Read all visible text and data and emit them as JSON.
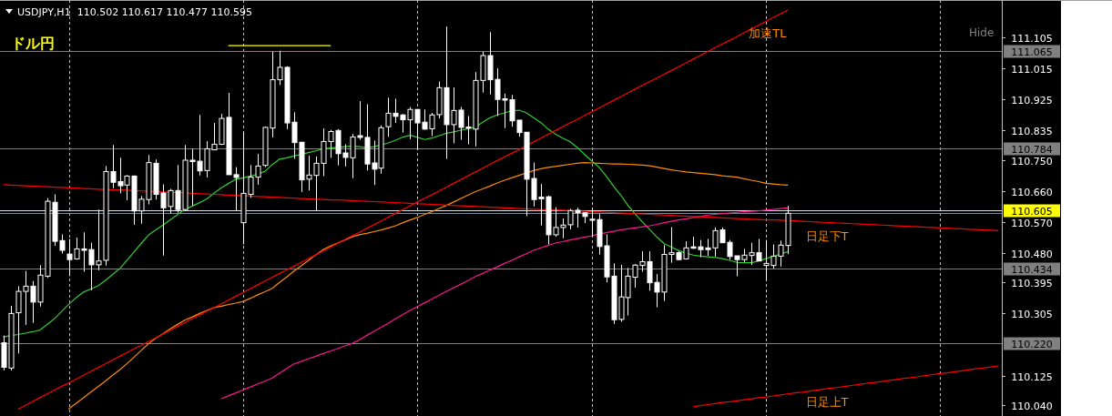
{
  "chart_data": {
    "type": "candlestick",
    "title": "USDJPY,H1",
    "subtitle": "110.502 110.617 110.477 110.595",
    "annotations": [
      "ドル円",
      "Hide"
    ],
    "color": "#ffffff",
    "categories": [
      null,
      null,
      null,
      null,
      null,
      null,
      null,
      null,
      null,
      null,
      null,
      null,
      null,
      null,
      null,
      null,
      null,
      null,
      null,
      null,
      null,
      null,
      null,
      null,
      null,
      null,
      null,
      null,
      null,
      null,
      null,
      null,
      null,
      null,
      null,
      null,
      null,
      null,
      null,
      null,
      null,
      null,
      null,
      null,
      null,
      null,
      null,
      null,
      null,
      null,
      null,
      null,
      null,
      null,
      null,
      null,
      null,
      null,
      null,
      null,
      null,
      null,
      null,
      null,
      null,
      null,
      null,
      null,
      null,
      null,
      null,
      null,
      null,
      null,
      null,
      null,
      null,
      null,
      null,
      null,
      null,
      null,
      null,
      null,
      null,
      null,
      null,
      null,
      null,
      null,
      null,
      null,
      null,
      null,
      null,
      null,
      null,
      null,
      null,
      null,
      null,
      null,
      null,
      null,
      null,
      null,
      null,
      null,
      null,
      null,
      null,
      null,
      null,
      null,
      null,
      null,
      null,
      null,
      null,
      null,
      null,
      null,
      null,
      null,
      null,
      null,
      null,
      null,
      null,
      null,
      null,
      null,
      null,
      null,
      null,
      null,
      null,
      null
    ],
    "ohlc": [
      [
        110.22,
        110.241,
        110.14,
        110.149
      ],
      [
        110.147,
        110.327,
        110.14,
        110.305
      ],
      [
        110.307,
        110.384,
        110.189,
        110.369
      ],
      [
        110.369,
        110.428,
        110.272,
        110.384
      ],
      [
        110.384,
        110.399,
        110.278,
        110.338
      ],
      [
        110.338,
        110.445,
        110.325,
        110.416
      ],
      [
        110.413,
        110.639,
        110.408,
        110.63
      ],
      [
        110.627,
        110.65,
        110.501,
        110.514
      ],
      [
        110.516,
        110.534,
        110.479,
        110.488
      ],
      [
        110.477,
        110.521,
        110.413,
        110.461
      ],
      [
        110.463,
        110.525,
        110.461,
        110.492
      ],
      [
        110.492,
        110.54,
        110.426,
        110.488
      ],
      [
        110.49,
        110.51,
        110.372,
        110.446
      ],
      [
        110.446,
        110.606,
        110.43,
        110.457
      ],
      [
        110.459,
        110.732,
        110.444,
        110.716
      ],
      [
        110.716,
        110.793,
        110.668,
        110.685
      ],
      [
        110.687,
        110.756,
        110.653,
        110.675
      ],
      [
        110.677,
        110.706,
        110.633,
        110.703
      ],
      [
        110.703,
        110.705,
        110.562,
        110.602
      ],
      [
        110.602,
        110.645,
        110.565,
        110.636
      ],
      [
        110.635,
        110.764,
        110.621,
        110.742
      ],
      [
        110.74,
        110.751,
        110.635,
        110.65
      ],
      [
        110.654,
        110.679,
        110.473,
        110.611
      ],
      [
        110.615,
        110.666,
        110.595,
        110.661
      ],
      [
        110.661,
        110.735,
        110.597,
        110.606
      ],
      [
        110.606,
        110.793,
        110.602,
        110.749
      ],
      [
        110.749,
        110.782,
        110.617,
        110.745
      ],
      [
        110.746,
        110.88,
        110.705,
        110.718
      ],
      [
        110.719,
        110.804,
        110.699,
        110.782
      ],
      [
        110.779,
        110.857,
        110.778,
        110.795
      ],
      [
        110.795,
        110.883,
        110.793,
        110.87
      ],
      [
        110.873,
        110.944,
        110.707,
        110.707
      ],
      [
        110.707,
        110.729,
        110.602,
        110.699
      ],
      [
        110.568,
        110.83,
        110.505,
        110.653
      ],
      [
        110.65,
        110.735,
        110.64,
        110.7
      ],
      [
        110.7,
        110.767,
        110.678,
        110.732
      ],
      [
        110.734,
        110.846,
        110.729,
        110.844
      ],
      [
        110.842,
        111.063,
        110.815,
        110.982
      ],
      [
        110.982,
        111.066,
        110.967,
        111.018
      ],
      [
        111.018,
        111.021,
        110.839,
        110.857
      ],
      [
        110.859,
        110.888,
        110.753,
        110.8
      ],
      [
        110.801,
        110.801,
        110.657,
        110.692
      ],
      [
        110.694,
        110.762,
        110.661,
        110.706
      ],
      [
        110.705,
        110.76,
        110.602,
        110.74
      ],
      [
        110.74,
        110.841,
        110.703,
        110.803
      ],
      [
        110.803,
        110.837,
        110.756,
        110.832
      ],
      [
        110.835,
        110.839,
        110.734,
        110.768
      ],
      [
        110.77,
        110.795,
        110.731,
        110.757
      ],
      [
        110.756,
        110.825,
        110.697,
        110.816
      ],
      [
        110.82,
        110.92,
        110.808,
        110.815
      ],
      [
        110.815,
        110.911,
        110.719,
        110.738
      ],
      [
        110.741,
        110.806,
        110.677,
        110.723
      ],
      [
        110.726,
        110.85,
        110.71,
        110.843
      ],
      [
        110.846,
        110.93,
        110.817,
        110.885
      ],
      [
        110.885,
        110.927,
        110.857,
        110.876
      ],
      [
        110.88,
        110.883,
        110.829,
        110.866
      ],
      [
        110.866,
        110.903,
        110.81,
        110.896
      ],
      [
        110.896,
        110.896,
        110.779,
        110.857
      ],
      [
        110.859,
        110.896,
        110.837,
        110.839
      ],
      [
        110.84,
        110.886,
        110.819,
        110.88
      ],
      [
        110.881,
        110.977,
        110.87,
        110.959
      ],
      [
        110.959,
        111.136,
        110.753,
        110.852
      ],
      [
        110.852,
        110.96,
        110.798,
        110.893
      ],
      [
        110.894,
        110.903,
        110.808,
        110.844
      ],
      [
        110.845,
        110.877,
        110.795,
        110.842
      ],
      [
        110.839,
        111.004,
        110.789,
        110.98
      ],
      [
        110.98,
        111.063,
        110.945,
        111.052
      ],
      [
        111.052,
        111.12,
        110.94,
        110.982
      ],
      [
        110.983,
        111.015,
        110.877,
        110.925
      ],
      [
        110.927,
        110.942,
        110.842,
        110.923
      ],
      [
        110.924,
        110.938,
        110.846,
        110.863
      ],
      [
        110.865,
        110.865,
        110.817,
        110.829
      ],
      [
        110.83,
        110.83,
        110.587,
        110.694
      ],
      [
        110.696,
        110.742,
        110.615,
        110.635
      ],
      [
        110.642,
        110.68,
        110.56,
        110.637
      ],
      [
        110.643,
        110.646,
        110.505,
        110.533
      ],
      [
        110.533,
        110.613,
        110.527,
        110.554
      ],
      [
        110.554,
        110.58,
        110.523,
        110.561
      ],
      [
        110.562,
        110.608,
        110.549,
        110.603
      ],
      [
        110.604,
        110.611,
        110.554,
        110.597
      ],
      [
        110.597,
        110.597,
        110.567,
        110.586
      ],
      [
        110.578,
        110.611,
        110.527,
        110.575
      ],
      [
        110.577,
        110.593,
        110.476,
        110.499
      ],
      [
        110.501,
        110.534,
        110.395,
        110.411
      ],
      [
        110.413,
        110.45,
        110.275,
        110.287
      ],
      [
        110.288,
        110.446,
        110.281,
        110.353
      ],
      [
        110.351,
        110.437,
        110.299,
        110.413
      ],
      [
        110.41,
        110.448,
        110.38,
        110.445
      ],
      [
        110.444,
        110.485,
        110.426,
        110.455
      ],
      [
        110.455,
        110.485,
        110.371,
        110.394
      ],
      [
        110.395,
        110.419,
        110.323,
        110.367
      ],
      [
        110.367,
        110.503,
        110.341,
        110.476
      ],
      [
        110.476,
        110.555,
        110.452,
        110.481
      ],
      [
        110.481,
        110.485,
        110.459,
        110.461
      ],
      [
        110.463,
        110.514,
        110.461,
        110.495
      ],
      [
        110.498,
        110.527,
        110.492,
        110.494
      ],
      [
        110.498,
        110.518,
        110.468,
        110.49
      ],
      [
        110.495,
        110.521,
        110.472,
        110.49
      ],
      [
        110.495,
        110.554,
        110.47,
        110.545
      ],
      [
        110.547,
        110.554,
        110.51,
        110.51
      ],
      [
        110.511,
        110.518,
        110.461,
        110.47
      ],
      [
        110.472,
        110.472,
        110.413,
        110.461
      ],
      [
        110.461,
        110.492,
        110.454,
        110.474
      ],
      [
        110.473,
        110.51,
        110.446,
        110.481
      ],
      [
        110.481,
        110.521,
        110.457,
        110.457
      ],
      [
        110.444,
        110.518,
        110.4,
        110.45
      ],
      [
        110.444,
        110.505,
        110.435,
        110.471
      ],
      [
        110.471,
        110.516,
        110.441,
        110.503
      ],
      [
        110.502,
        110.617,
        110.477,
        110.595
      ],
      null,
      null,
      null,
      null,
      null,
      null,
      null,
      null,
      null,
      null,
      null,
      null,
      null,
      null,
      null,
      null,
      null,
      null,
      null,
      null,
      null,
      null,
      null,
      null,
      null,
      null,
      null,
      null,
      null
    ],
    "series": [
      {
        "type": "line",
        "color": "#32cd32",
        "values": [
          110.237,
          110.241,
          110.244,
          110.248,
          110.252,
          110.257,
          110.273,
          110.29,
          110.311,
          110.332,
          110.351,
          110.367,
          110.376,
          110.385,
          110.4,
          110.418,
          110.435,
          110.459,
          110.484,
          110.509,
          110.533,
          110.548,
          110.562,
          110.577,
          110.592,
          110.607,
          110.616,
          110.626,
          110.637,
          110.654,
          110.669,
          110.682,
          110.694,
          110.698,
          110.703,
          110.708,
          110.717,
          110.736,
          110.752,
          110.756,
          110.761,
          110.766,
          110.771,
          110.776,
          110.782,
          110.784,
          110.786,
          110.788,
          110.79,
          110.788,
          110.785,
          110.788,
          110.793,
          110.799,
          110.807,
          110.816,
          110.821,
          110.815,
          110.809,
          110.813,
          110.82,
          110.827,
          110.831,
          110.836,
          110.84,
          110.845,
          110.859,
          110.872,
          110.88,
          110.886,
          110.892,
          110.894,
          110.886,
          110.872,
          110.858,
          110.839,
          110.825,
          110.813,
          110.803,
          110.786,
          110.766,
          110.747,
          110.729,
          110.703,
          110.674,
          110.648,
          110.618,
          110.593,
          110.57,
          110.548,
          110.526,
          110.507,
          110.497,
          110.487,
          110.48,
          110.474,
          110.471,
          110.469,
          110.467,
          110.464,
          110.459,
          110.453,
          110.452,
          110.452,
          110.457,
          110.464,
          110.47,
          110.477,
          110.484,
          null,
          null,
          null,
          null,
          null,
          null,
          null,
          null,
          null,
          null,
          null,
          null,
          null,
          null,
          null,
          null,
          null,
          null,
          null,
          null,
          null,
          null,
          null,
          null,
          null,
          null,
          null,
          null,
          null
        ]
      },
      {
        "type": "line",
        "color": "#ff8c00",
        "values": [
          null,
          null,
          null,
          null,
          null,
          null,
          null,
          null,
          null,
          110.029,
          110.045,
          110.061,
          110.077,
          110.093,
          110.109,
          110.126,
          110.142,
          110.16,
          110.179,
          110.199,
          110.218,
          110.234,
          110.247,
          110.261,
          110.274,
          110.286,
          110.295,
          110.305,
          110.314,
          110.322,
          110.326,
          110.331,
          110.335,
          110.34,
          110.349,
          110.359,
          110.368,
          110.378,
          110.395,
          110.411,
          110.428,
          110.443,
          110.459,
          110.475,
          110.49,
          110.5,
          110.509,
          110.518,
          110.527,
          110.533,
          110.537,
          110.542,
          110.547,
          110.553,
          110.559,
          110.568,
          110.576,
          110.583,
          110.592,
          110.6,
          110.609,
          110.618,
          110.628,
          110.638,
          110.648,
          110.658,
          110.666,
          110.674,
          110.683,
          110.691,
          110.698,
          110.705,
          110.712,
          110.719,
          110.724,
          110.728,
          110.731,
          110.734,
          110.737,
          110.74,
          110.742,
          110.741,
          110.74,
          110.739,
          110.738,
          110.738,
          110.737,
          110.736,
          110.735,
          110.733,
          110.729,
          110.725,
          110.721,
          110.718,
          110.715,
          110.713,
          110.711,
          110.709,
          110.707,
          110.704,
          110.702,
          110.7,
          110.695,
          110.691,
          110.687,
          110.682,
          110.68,
          110.678,
          110.677,
          null,
          null,
          null,
          null,
          null,
          null,
          null,
          null,
          null,
          null,
          null,
          null,
          null,
          null,
          null,
          null,
          null,
          null,
          null,
          null,
          null,
          null,
          null,
          null,
          null,
          null,
          null,
          null,
          null
        ]
      },
      {
        "type": "line",
        "color": "#ff1493",
        "values": [
          null,
          null,
          null,
          null,
          null,
          null,
          null,
          null,
          null,
          null,
          null,
          null,
          null,
          null,
          null,
          null,
          null,
          null,
          null,
          null,
          null,
          null,
          null,
          null,
          null,
          null,
          null,
          null,
          null,
          null,
          110.058,
          110.067,
          110.075,
          110.084,
          110.092,
          110.101,
          110.109,
          110.118,
          110.132,
          110.146,
          110.159,
          110.166,
          110.174,
          110.181,
          110.189,
          110.196,
          110.203,
          110.211,
          110.218,
          110.229,
          110.241,
          110.253,
          110.265,
          110.277,
          110.29,
          110.302,
          110.314,
          110.325,
          110.336,
          110.347,
          110.358,
          110.369,
          110.38,
          110.39,
          110.401,
          110.412,
          110.421,
          110.431,
          110.44,
          110.45,
          110.459,
          110.469,
          110.478,
          110.488,
          110.495,
          110.502,
          110.509,
          110.513,
          110.518,
          110.522,
          110.526,
          110.53,
          110.535,
          110.539,
          110.543,
          110.547,
          110.55,
          110.553,
          110.556,
          110.559,
          110.563,
          110.568,
          110.572,
          110.576,
          110.579,
          110.583,
          110.586,
          110.59,
          110.592,
          110.594,
          110.596,
          110.598,
          110.6,
          110.601,
          110.602,
          110.604,
          110.606,
          110.609,
          110.611,
          null,
          null,
          null,
          null,
          null,
          null,
          null,
          null,
          null,
          null,
          null,
          null,
          null,
          null,
          null,
          null,
          null,
          null,
          null,
          null,
          null,
          null,
          null,
          null,
          null,
          null,
          null,
          null,
          null
        ]
      },
      {
        "type": "line",
        "color": "#ff0000",
        "name": "加速TL",
        "values": [
          null,
          null,
          110.028,
          110.039,
          110.05,
          110.061,
          110.072,
          110.083,
          110.094,
          110.104,
          110.115,
          110.126,
          110.137,
          110.148,
          110.159,
          110.17,
          110.181,
          110.192,
          110.203,
          110.213,
          110.224,
          110.235,
          110.246,
          110.257,
          110.268,
          110.279,
          110.29,
          110.301,
          110.312,
          110.322,
          110.333,
          110.344,
          110.355,
          110.366,
          110.377,
          110.388,
          110.399,
          110.41,
          110.421,
          110.431,
          110.442,
          110.453,
          110.464,
          110.475,
          110.486,
          110.497,
          110.508,
          110.519,
          110.53,
          110.54,
          110.551,
          110.562,
          110.573,
          110.584,
          110.595,
          110.606,
          110.617,
          110.628,
          110.639,
          110.649,
          110.66,
          110.671,
          110.682,
          110.693,
          110.704,
          110.715,
          110.726,
          110.737,
          110.748,
          110.759,
          110.769,
          110.78,
          110.791,
          110.802,
          110.813,
          110.824,
          110.835,
          110.846,
          110.857,
          110.867,
          110.878,
          110.889,
          110.9,
          110.911,
          110.922,
          110.933,
          110.944,
          110.955,
          110.966,
          110.977,
          110.987,
          110.998,
          111.009,
          111.02,
          111.031,
          111.042,
          111.053,
          111.064,
          111.075,
          111.086,
          111.096,
          111.107,
          111.118,
          111.129,
          111.14,
          111.151,
          111.162,
          111.173,
          111.184,
          null,
          null,
          null,
          null,
          null,
          null,
          null,
          null,
          null,
          null,
          null,
          null,
          null,
          null,
          null,
          null,
          null,
          null,
          null,
          null,
          null,
          null,
          null,
          null,
          null,
          null,
          null,
          null,
          null
        ]
      },
      {
        "type": "line",
        "color": "#ff0000",
        "name": "日足下T",
        "values": [
          110.678,
          110.677,
          110.676,
          110.675,
          110.674,
          110.673,
          110.672,
          110.671,
          110.67,
          110.669,
          110.668,
          110.667,
          110.666,
          110.665,
          110.664,
          110.663,
          110.663,
          110.662,
          110.661,
          110.66,
          110.659,
          110.658,
          110.657,
          110.656,
          110.655,
          110.654,
          110.653,
          110.652,
          110.651,
          110.65,
          110.649,
          110.648,
          110.647,
          110.646,
          110.645,
          110.644,
          110.643,
          110.642,
          110.641,
          110.64,
          110.639,
          110.638,
          110.637,
          110.636,
          110.635,
          110.634,
          110.634,
          110.633,
          110.632,
          110.631,
          110.63,
          110.629,
          110.628,
          110.627,
          110.626,
          110.625,
          110.624,
          110.623,
          110.622,
          110.621,
          110.62,
          110.619,
          110.618,
          110.617,
          110.616,
          110.615,
          110.614,
          110.613,
          110.612,
          110.611,
          110.61,
          110.609,
          110.608,
          110.607,
          110.606,
          110.605,
          110.605,
          110.604,
          110.603,
          110.602,
          110.601,
          110.6,
          110.599,
          110.598,
          110.597,
          110.596,
          110.595,
          110.594,
          110.593,
          110.592,
          110.591,
          110.59,
          110.589,
          110.588,
          110.587,
          110.586,
          110.585,
          110.584,
          110.583,
          110.582,
          110.581,
          110.58,
          110.579,
          110.578,
          110.577,
          110.576,
          110.576,
          110.575,
          110.574,
          110.573,
          110.572,
          110.571,
          110.57,
          110.569,
          110.568,
          110.567,
          110.566,
          110.565,
          110.564,
          110.563,
          110.562,
          110.561,
          110.56,
          110.559,
          110.558,
          110.557,
          110.556,
          110.555,
          110.554,
          110.553,
          110.552,
          110.551,
          110.55,
          110.549,
          110.548,
          110.547,
          110.546,
          110.545
        ]
      },
      {
        "type": "line",
        "color": "#ff0000",
        "name": "日足上T",
        "values": [
          null,
          null,
          null,
          null,
          null,
          null,
          null,
          null,
          null,
          null,
          null,
          null,
          null,
          null,
          null,
          null,
          null,
          null,
          null,
          null,
          null,
          null,
          null,
          null,
          null,
          null,
          null,
          null,
          null,
          null,
          null,
          null,
          null,
          null,
          null,
          null,
          null,
          null,
          null,
          null,
          null,
          null,
          null,
          null,
          null,
          null,
          null,
          null,
          null,
          null,
          null,
          null,
          null,
          null,
          null,
          null,
          null,
          null,
          null,
          null,
          null,
          null,
          null,
          null,
          null,
          null,
          null,
          null,
          null,
          null,
          null,
          null,
          null,
          null,
          null,
          null,
          null,
          null,
          null,
          null,
          null,
          null,
          null,
          null,
          null,
          null,
          null,
          null,
          null,
          null,
          null,
          null,
          null,
          null,
          null,
          110.035,
          110.038,
          110.041,
          110.044,
          110.047,
          110.049,
          110.052,
          110.055,
          110.058,
          110.061,
          110.063,
          110.066,
          110.069,
          110.072,
          110.075,
          110.077,
          110.08,
          110.083,
          110.086,
          110.089,
          110.091,
          110.094,
          110.097,
          110.1,
          110.103,
          110.105,
          110.108,
          110.111,
          110.114,
          110.117,
          110.119,
          110.122,
          110.125,
          110.128,
          110.131,
          110.133,
          110.136,
          110.139,
          110.142,
          110.145,
          110.147,
          110.15,
          110.153
        ]
      },
      {
        "type": "line",
        "color": "#ffff00",
        "values": [
          null,
          null,
          null,
          null,
          null,
          null,
          null,
          null,
          null,
          null,
          null,
          null,
          null,
          null,
          null,
          null,
          null,
          null,
          null,
          null,
          null,
          null,
          null,
          null,
          null,
          null,
          null,
          null,
          null,
          null,
          null,
          111.081,
          111.081,
          111.081,
          111.081,
          111.081,
          111.081,
          111.081,
          111.081,
          111.081,
          111.081,
          111.081,
          111.081,
          111.081,
          111.081,
          111.081,
          null,
          null,
          null,
          null,
          null,
          null,
          null,
          null,
          null,
          null,
          null,
          null,
          null,
          null,
          null,
          null,
          null,
          null,
          null,
          null,
          null,
          null,
          null,
          null,
          null,
          null,
          null,
          null,
          null,
          null,
          null,
          null,
          null,
          null,
          null,
          null,
          null,
          null,
          null,
          null,
          null,
          null,
          null,
          null,
          null,
          null,
          null,
          null,
          null,
          null,
          null,
          null,
          null,
          null,
          null,
          null,
          null,
          null,
          null,
          null,
          null,
          null,
          null,
          null,
          null,
          null,
          null,
          null,
          null,
          null,
          null,
          null,
          null,
          null,
          null,
          null,
          null,
          null,
          null,
          null,
          null,
          null,
          null,
          null,
          null,
          null,
          null,
          null,
          null,
          null,
          null,
          null
        ]
      }
    ],
    "ref_lines": [
      {
        "axis": "y",
        "value": 111.065,
        "label": "111.065",
        "color": "#808080"
      },
      {
        "axis": "y",
        "value": 110.784,
        "label": "110.784",
        "color": "#808080"
      },
      {
        "axis": "y",
        "value": 110.434,
        "label": "110.434",
        "color": "#808080"
      },
      {
        "axis": "y",
        "value": 110.22,
        "label": "110.220",
        "color": "#808080"
      },
      {
        "axis": "y",
        "value": 110.595,
        "color": "#778899"
      },
      {
        "axis": "y",
        "value": 110.605,
        "label": "110.605",
        "color": "#ffff00"
      }
    ],
    "ylim": [
      110.008,
      111.213
    ],
    "yticks": [
      111.105,
      111.015,
      110.925,
      110.835,
      {
        "value": 110.75,
        "label": "110.750"
      },
      {
        "value": 110.66,
        "label": "110.660"
      },
      {
        "value": 110.57,
        "label": "110.570"
      },
      {
        "value": 110.48,
        "label": "110.480"
      },
      110.395,
      110.305,
      110.125,
      {
        "value": 110.04,
        "label": "110.040"
      }
    ]
  }
}
